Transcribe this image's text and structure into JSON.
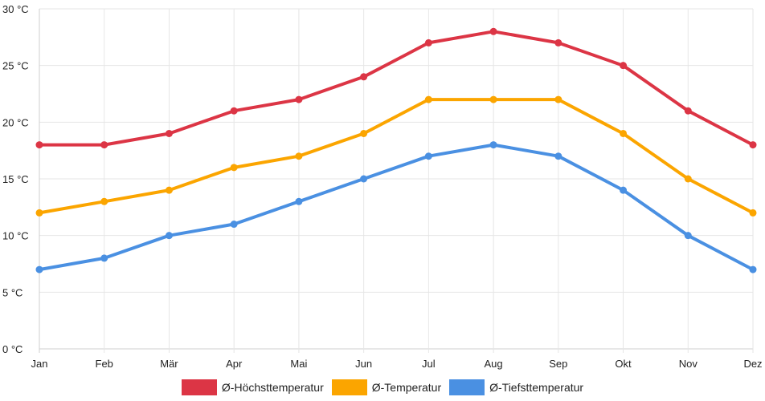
{
  "chart_data": {
    "type": "line",
    "categories": [
      "Jan",
      "Feb",
      "Mär",
      "Apr",
      "Mai",
      "Jun",
      "Jul",
      "Aug",
      "Sep",
      "Okt",
      "Nov",
      "Dez"
    ],
    "ylim": [
      0,
      30
    ],
    "yticks": [
      {
        "value": 0,
        "label": "0 °C"
      },
      {
        "value": 5,
        "label": "5 °C"
      },
      {
        "value": 10,
        "label": "10 °C"
      },
      {
        "value": 15,
        "label": "15 °C"
      },
      {
        "value": 20,
        "label": "20 °C"
      },
      {
        "value": 25,
        "label": "25 °C"
      },
      {
        "value": 30,
        "label": "30 °C"
      }
    ],
    "grid": true,
    "legend_position": "bottom",
    "series": [
      {
        "key": "hoechst",
        "name": "Ø-Höchsttemperatur",
        "color": "#dc3545",
        "values": [
          18,
          18,
          19,
          21,
          22,
          24,
          27,
          28,
          27,
          25,
          21,
          18
        ]
      },
      {
        "key": "mittel",
        "name": "Ø-Temperatur",
        "color": "#fba500",
        "values": [
          12,
          13,
          14,
          16,
          17,
          19,
          22,
          22,
          22,
          19,
          15,
          12
        ]
      },
      {
        "key": "tief",
        "name": "Ø-Tiefsttemperatur",
        "color": "#4a90e2",
        "values": [
          7,
          8,
          10,
          11,
          13,
          15,
          17,
          18,
          17,
          14,
          10,
          7
        ]
      }
    ]
  }
}
